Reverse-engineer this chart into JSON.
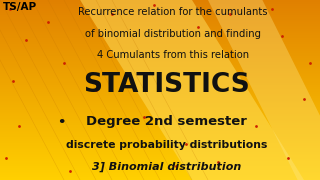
{
  "bg_color": "#FFB800",
  "bg_gradient_top": "#E08000",
  "bg_gradient_bottom": "#FFD000",
  "ts_ap_text": "TS/AP",
  "ts_ap_color": "#000000",
  "ts_ap_fontsize": 7.5,
  "line1": "Recurrence relation for the cumulants",
  "line2": "of binomial distribution and finding",
  "line3": "4 Cumulants from this relation",
  "subtitle_color": "#111111",
  "subtitle_fontsize": 7.2,
  "main_title": "STATISTICS",
  "main_title_color": "#111111",
  "main_title_fontsize": 19,
  "degree_text": "Degree 2nd semester",
  "degree_color": "#111111",
  "degree_fontsize": 9.5,
  "discrete_text": "discrete probability distributions",
  "discrete_color": "#111111",
  "discrete_fontsize": 7.8,
  "binomial_text": "3] Binomial distribution",
  "binomial_color": "#111111",
  "binomial_fontsize": 8.0,
  "dot_color": "#cc2200",
  "figsize": [
    3.2,
    1.8
  ],
  "dpi": 100
}
